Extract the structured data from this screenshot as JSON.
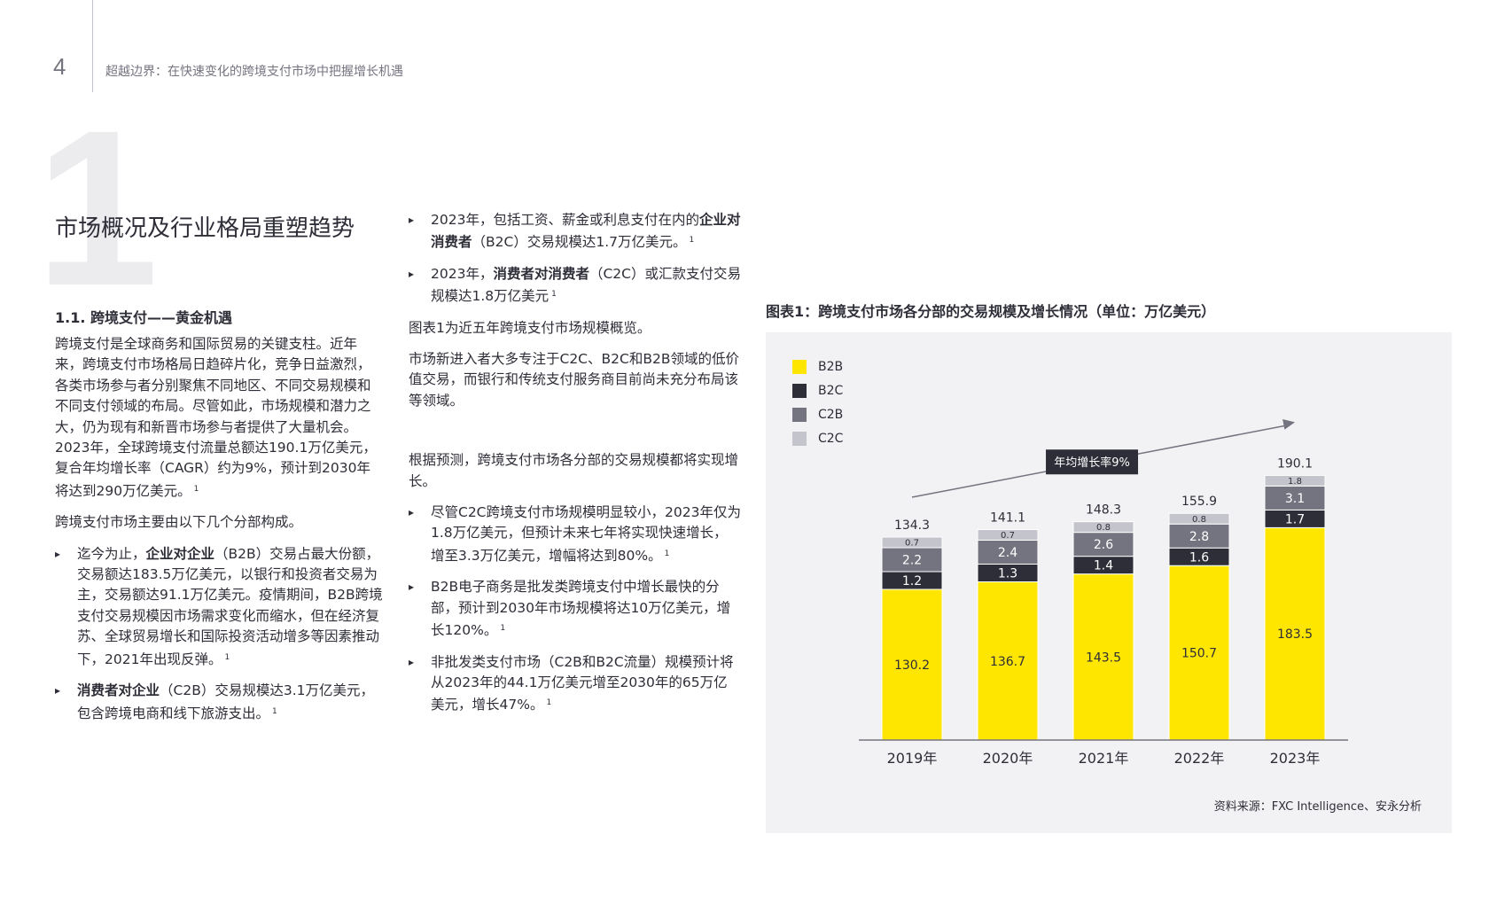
{
  "header": {
    "page_number": "4",
    "title": "超越边界：在快速变化的跨境支付市场中把握增长机遇"
  },
  "section": {
    "numeral": "1",
    "title": "市场概况及行业格局重塑趋势",
    "subsection_title": "1.1. 跨境支付——黄金机遇"
  },
  "left_column": {
    "intro": "跨境支付是全球商务和国际贸易的关键支柱。近年来，跨境支付市场格局日趋碎片化，竞争日益激烈，各类市场参与者分别聚焦不同地区、不同交易规模和不同支付领域的布局。尽管如此，市场规模和潜力之大，仍为现有和新晋市场参与者提供了大量机会。2023年，全球跨境支付流量总额达190.1万亿美元，复合年均增长率（CAGR）约为9%，预计到2030年将达到290万亿美元。",
    "intro_ref": "1",
    "segments_intro": "跨境支付市场主要由以下几个分部构成。",
    "b2b_pre": "迄今为止，",
    "b2b_bold": "企业对企业",
    "b2b_rest": "（B2B）交易占最大份额，交易额达183.5万亿美元，以银行和投资者交易为主，交易额达91.1万亿美元。疫情期间，B2B跨境支付交易规模因市场需求变化而缩水，但在经济复苏、全球贸易增长和国际投资活动增多等因素推动下，2021年出现反弹。",
    "b2b_ref": "1",
    "c2b_bold": "消费者对企业",
    "c2b_rest": "（C2B）交易规模达3.1万亿美元，包含跨境电商和线下旅游支出。",
    "c2b_ref": "1"
  },
  "mid_column": {
    "b2c_pre": "2023年，包括工资、薪金或利息支付在内的",
    "b2c_bold": "企业对消费者",
    "b2c_rest": "（B2C）交易规模达1.7万亿美元。",
    "b2c_ref": "1",
    "c2c_pre": "2023年，",
    "c2c_bold": "消费者对消费者",
    "c2c_rest": "（C2C）或汇款支付交易规模达1.8万亿美元",
    "c2c_ref": "1",
    "chart_intro": "图表1为近五年跨境支付市场规模概览。",
    "new_entrants": "市场新进入者大多专注于C2C、B2C和B2B领域的低价值交易，而银行和传统支付服务商目前尚未充分布局该等领域。",
    "forecast_intro": "根据预测，跨境支付市场各分部的交易规模都将实现增长。",
    "bullet1": "尽管C2C跨境支付市场规模明显较小，2023年仅为1.8万亿美元，但预计未来七年将实现快速增长，增至3.3万亿美元，增幅将达到80%。",
    "bullet1_ref": "1",
    "bullet2": "B2B电子商务是批发类跨境支付中增长最快的分部，预计到2030年市场规模将达10万亿美元，增长120%。",
    "bullet2_ref": "1",
    "bullet3": "非批发类支付市场（C2B和B2C流量）规模预计将从2023年的44.1万亿美元增至2030年的65万亿美元，增长47%。",
    "bullet3_ref": "1"
  },
  "figure": {
    "title": "图表1：跨境支付市场各分部的交易规模及增长情况（单位：万亿美元）",
    "source": "资料来源：FXC Intelligence、安永分析"
  },
  "chart_data": {
    "type": "bar",
    "stacked": true,
    "categories": [
      "2019年",
      "2020年",
      "2021年",
      "2022年",
      "2023年"
    ],
    "series": [
      {
        "name": "B2B",
        "color": "#ffe600",
        "values": [
          130.2,
          136.7,
          143.5,
          150.7,
          183.5
        ]
      },
      {
        "name": "B2C",
        "color": "#2e2e38",
        "values": [
          1.2,
          1.3,
          1.4,
          1.6,
          1.7
        ]
      },
      {
        "name": "C2B",
        "color": "#747480",
        "values": [
          2.2,
          2.4,
          2.6,
          2.8,
          3.1
        ]
      },
      {
        "name": "C2C",
        "color": "#c4c4cd",
        "values": [
          0.7,
          0.7,
          0.8,
          0.8,
          1.8
        ]
      }
    ],
    "totals": [
      "134.3",
      "141.1",
      "148.3",
      "155.9",
      "190.1"
    ],
    "value_labels": [
      [
        "130.2",
        "136.7",
        "143.5",
        "150.7",
        "183.5"
      ],
      [
        "1.2",
        "1.3",
        "1.4",
        "1.6",
        "1.7"
      ],
      [
        "2.2",
        "2.4",
        "2.6",
        "2.8",
        "3.1"
      ],
      [
        "0.7",
        "0.7",
        "0.8",
        "0.8",
        "1.8"
      ]
    ],
    "annotation": "年均增长率9%",
    "legend_position": "top-left",
    "grid": false
  }
}
